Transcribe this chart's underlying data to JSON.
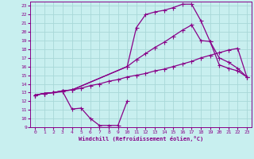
{
  "title": "",
  "xlabel": "Windchill (Refroidissement éolien,°C)",
  "ylabel": "",
  "bg_color": "#c8efef",
  "grid_color": "#a8d8d8",
  "line_color": "#880088",
  "xlim": [
    -0.5,
    23.5
  ],
  "ylim": [
    9,
    23.5
  ],
  "xticks": [
    0,
    1,
    2,
    3,
    4,
    5,
    6,
    7,
    8,
    9,
    10,
    11,
    12,
    13,
    14,
    15,
    16,
    17,
    18,
    19,
    20,
    21,
    22,
    23
  ],
  "yticks": [
    9,
    10,
    11,
    12,
    13,
    14,
    15,
    16,
    17,
    18,
    19,
    20,
    21,
    22,
    23
  ],
  "line1_x": [
    0,
    1,
    2,
    3,
    4,
    5,
    6,
    7,
    8,
    9,
    10
  ],
  "line1_y": [
    12.7,
    12.9,
    13.0,
    13.1,
    11.1,
    11.2,
    10.0,
    9.2,
    9.2,
    9.2,
    12.0
  ],
  "line2_x": [
    0,
    1,
    2,
    3,
    4,
    10,
    11,
    12,
    13,
    14,
    15,
    16,
    17,
    18,
    19,
    20,
    21,
    22,
    23
  ],
  "line2_y": [
    12.7,
    12.9,
    13.0,
    13.2,
    13.3,
    16.0,
    16.8,
    17.5,
    18.2,
    18.8,
    19.5,
    20.2,
    20.8,
    19.0,
    18.9,
    16.2,
    15.8,
    15.5,
    14.8
  ],
  "line3_x": [
    0,
    1,
    2,
    3,
    4,
    10,
    11,
    12,
    13,
    14,
    15,
    16,
    17,
    18,
    19,
    20,
    21,
    22,
    23
  ],
  "line3_y": [
    12.7,
    12.9,
    13.0,
    13.2,
    13.3,
    16.0,
    20.5,
    22.0,
    22.3,
    22.5,
    22.8,
    23.2,
    23.2,
    21.3,
    18.9,
    17.0,
    16.5,
    15.8,
    14.8
  ],
  "line4_x": [
    0,
    1,
    2,
    3,
    4,
    5,
    6,
    7,
    8,
    9,
    10,
    11,
    12,
    13,
    14,
    15,
    16,
    17,
    18,
    19,
    20,
    21,
    22,
    23
  ],
  "line4_y": [
    12.7,
    12.9,
    13.0,
    13.2,
    13.3,
    13.5,
    13.8,
    14.0,
    14.3,
    14.5,
    14.8,
    15.0,
    15.2,
    15.5,
    15.7,
    16.0,
    16.3,
    16.6,
    17.0,
    17.3,
    17.6,
    17.9,
    18.1,
    14.8
  ]
}
